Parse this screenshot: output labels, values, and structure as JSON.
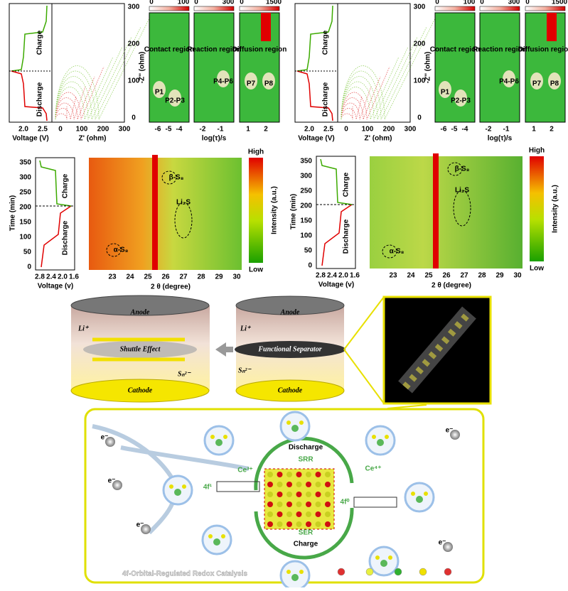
{
  "eis_panels": [
    {
      "voltage_axis": {
        "label": "Voltage (V)",
        "ticks": [
          "2.0",
          "2.5"
        ]
      },
      "charge": "Charge",
      "discharge": "Discharge",
      "z_axis": {
        "label": "Z' (ohm)",
        "ticks": [
          "0",
          "100",
          "200",
          "300"
        ]
      },
      "zim_axis": {
        "label": "-Z'' (ohm)",
        "ticks": [
          "0",
          "100",
          "200",
          "300"
        ]
      },
      "drt": [
        {
          "scale": [
            "0",
            "100"
          ],
          "region": "Contact region",
          "peaks": [
            "P1",
            "P2-P3"
          ],
          "ticks": [
            "-6",
            "-5",
            "-4"
          ]
        },
        {
          "scale": [
            "0",
            "300"
          ],
          "region": "Reaction region",
          "peaks": [
            "P4-P6"
          ],
          "ticks": [
            "-2",
            "-1"
          ],
          "axis_label": "log(τ)/s"
        },
        {
          "scale": [
            "0",
            "1500"
          ],
          "region": "Diffusion region",
          "peaks": [
            "P7",
            "P8"
          ],
          "ticks": [
            "1",
            "2"
          ]
        }
      ]
    },
    {
      "voltage_axis": {
        "label": "Voltage (V)",
        "ticks": [
          "2.0",
          "2.5"
        ]
      },
      "charge": "Charge",
      "discharge": "Discharge",
      "z_axis": {
        "label": "Z' (ohm)",
        "ticks": [
          "0",
          "100",
          "200",
          "300"
        ]
      },
      "zim_axis": {
        "label": "-Z'' (ohm)",
        "ticks": [
          "0",
          "100",
          "200",
          "300"
        ]
      },
      "drt": [
        {
          "scale": [
            "0",
            "100"
          ],
          "region": "Contact region",
          "peaks": [
            "P1",
            "P2-P3"
          ],
          "ticks": [
            "-6",
            "-5",
            "-4"
          ]
        },
        {
          "scale": [
            "0",
            "300"
          ],
          "region": "Reaction region",
          "peaks": [
            "P4-P6"
          ],
          "ticks": [
            "-2",
            "-1"
          ],
          "axis_label": "log(τ)/s"
        },
        {
          "scale": [
            "0",
            "1500"
          ],
          "region": "Diffusion region",
          "peaks": [
            "P7",
            "P8"
          ],
          "ticks": [
            "1",
            "2"
          ]
        }
      ]
    }
  ],
  "xrd_panels": [
    {
      "time_axis": {
        "label": "Time (min)",
        "ticks": [
          "0",
          "50",
          "100",
          "150",
          "200",
          "250",
          "300",
          "350"
        ]
      },
      "voltage_axis": {
        "label": "Voltage (v)",
        "ticks": [
          "2.8",
          "2.4",
          "2.0",
          "1.6"
        ]
      },
      "charge": "Charge",
      "discharge": "Discharge",
      "theta_axis": {
        "label": "2 θ (degree)",
        "ticks": [
          "23",
          "24",
          "25",
          "26",
          "27",
          "28",
          "29",
          "30"
        ]
      },
      "labels": [
        "β-S₈",
        "Li₂S",
        "α-S₈"
      ],
      "colorbar": {
        "high": "High",
        "low": "Low",
        "title": "Intensity (a.u.)"
      }
    },
    {
      "time_axis": {
        "label": "Time (min)",
        "ticks": [
          "0",
          "50",
          "100",
          "150",
          "200",
          "250",
          "300",
          "350"
        ]
      },
      "voltage_axis": {
        "label": "Voltage (v)",
        "ticks": [
          "2.8",
          "2.4",
          "2.0",
          "1.6"
        ]
      },
      "charge": "Charge",
      "discharge": "Discharge",
      "theta_axis": {
        "label": "2 θ (degree)",
        "ticks": [
          "23",
          "24",
          "25",
          "26",
          "27",
          "28",
          "29",
          "30"
        ]
      },
      "labels": [
        "β-S₈",
        "Li₂S",
        "α-S₈"
      ],
      "colorbar": {
        "high": "High",
        "low": "Low",
        "title": "Intensity (a.u.)"
      }
    }
  ],
  "mechanism": {
    "left": {
      "anode": "Anode",
      "ion": "Li⁺",
      "center": "Shuttle Effect",
      "polysulfide": "Sₙ²⁻",
      "cathode": "Cathode"
    },
    "right": {
      "anode": "Anode",
      "ion": "Li⁺",
      "center": "Functional Separator",
      "polysulfide": "Sₙ²⁻",
      "cathode": "Cathode"
    }
  },
  "catalysis": {
    "discharge": "Discharge",
    "srr": "SRR",
    "ce3": "Ce³⁺",
    "f1": "4f¹",
    "ce4": "Ce⁴⁺",
    "f0": "4f⁰",
    "ser": "SER",
    "charge": "Charge",
    "title": "4f-Orbital-Regulated Redox Catalysis",
    "electrons": [
      "e⁻",
      "e⁻",
      "e⁻",
      "e⁻",
      "e⁻"
    ]
  }
}
